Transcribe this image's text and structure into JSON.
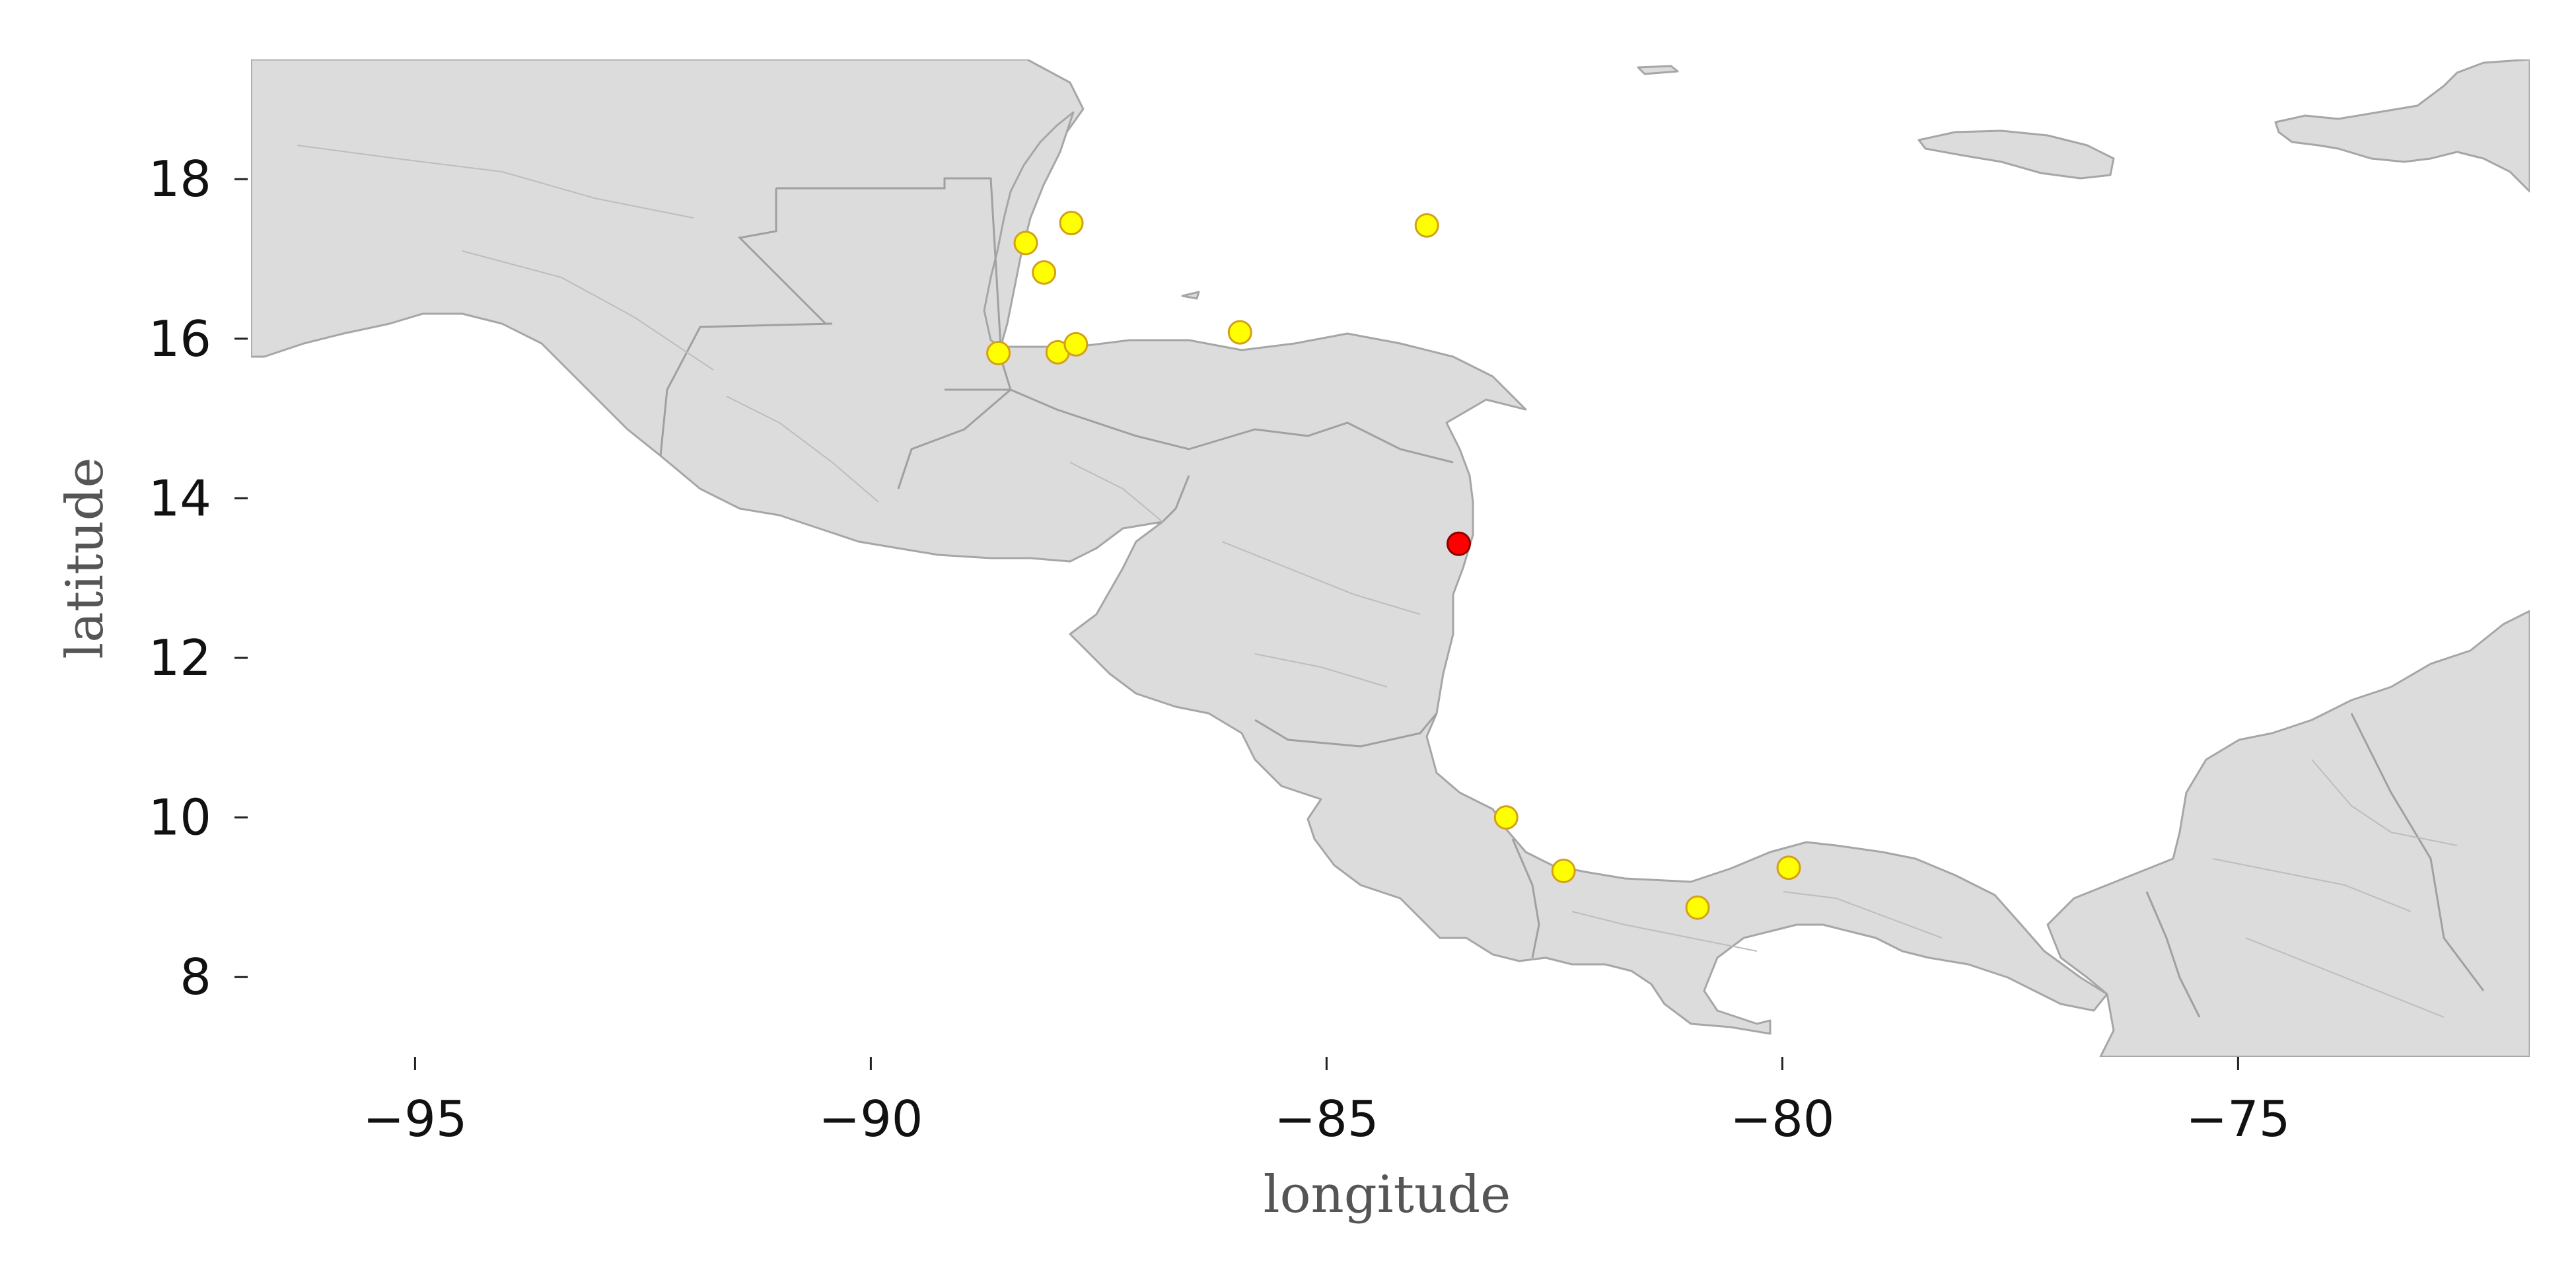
{
  "chart_data": {
    "type": "scatter",
    "subtype": "geographic-map",
    "xlabel": "longitude",
    "ylabel": "latitude",
    "xlim": [
      -96.8,
      -71.8
    ],
    "ylim": [
      7.0,
      19.5
    ],
    "x_ticks": [
      -95,
      -90,
      -85,
      -80,
      -75
    ],
    "x_tick_labels": [
      "−95",
      "−90",
      "−85",
      "−80",
      "−75"
    ],
    "y_ticks": [
      8,
      10,
      12,
      14,
      16,
      18
    ],
    "y_tick_labels": [
      "8",
      "10",
      "12",
      "14",
      "16",
      "18"
    ],
    "grid": false,
    "legend": "none",
    "colors": {
      "land": "#dcdcdc",
      "coast": "#a6a6a6",
      "point_default": "#ffff00",
      "point_default_edge": "#d4a017",
      "point_highlight": "#ff0000",
      "point_highlight_edge": "#8b0000"
    },
    "points": [
      {
        "lon": -88.3,
        "lat": 17.2,
        "kind": "default"
      },
      {
        "lon": -87.8,
        "lat": 17.45,
        "kind": "default"
      },
      {
        "lon": -88.1,
        "lat": 16.83,
        "kind": "default"
      },
      {
        "lon": -83.9,
        "lat": 17.42,
        "kind": "default"
      },
      {
        "lon": -88.6,
        "lat": 15.82,
        "kind": "default"
      },
      {
        "lon": -87.95,
        "lat": 15.83,
        "kind": "default"
      },
      {
        "lon": -87.75,
        "lat": 15.93,
        "kind": "default"
      },
      {
        "lon": -85.95,
        "lat": 16.08,
        "kind": "default"
      },
      {
        "lon": -83.55,
        "lat": 13.43,
        "kind": "highlight"
      },
      {
        "lon": -83.03,
        "lat": 10.0,
        "kind": "default"
      },
      {
        "lon": -82.4,
        "lat": 9.33,
        "kind": "default"
      },
      {
        "lon": -80.93,
        "lat": 8.87,
        "kind": "default"
      },
      {
        "lon": -79.93,
        "lat": 9.37,
        "kind": "default"
      }
    ]
  }
}
